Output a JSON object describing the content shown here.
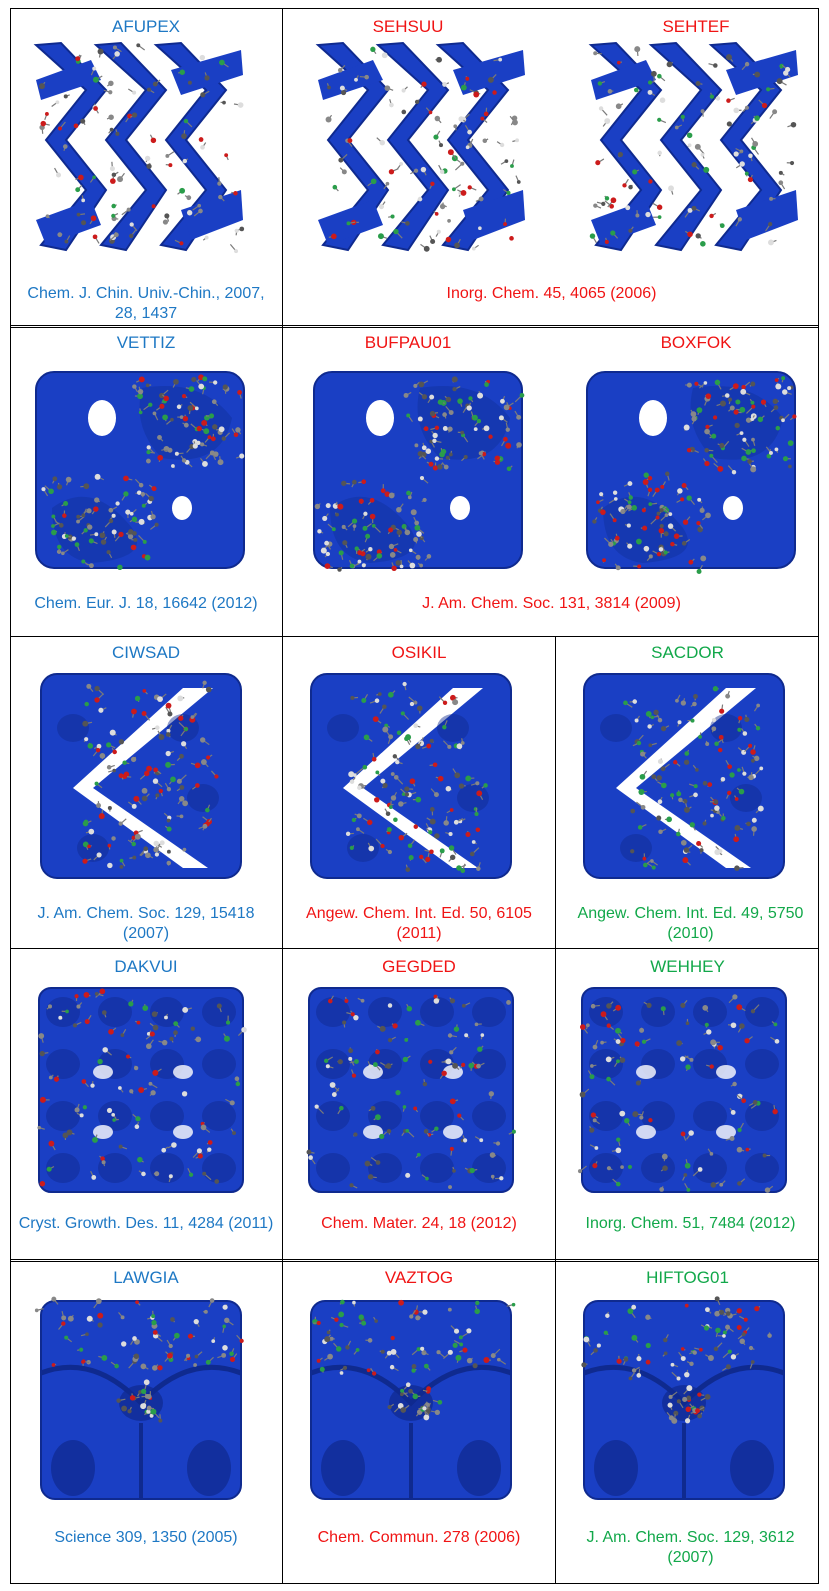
{
  "colors": {
    "blue": "#1e78c4",
    "red": "#f01414",
    "green": "#12a84a",
    "framework_surface": "#1a3fc4",
    "framework_dark": "#0f2a8f"
  },
  "rows": [
    {
      "cells": [
        {
          "name": "AFUPEX",
          "color": "blue",
          "image_style": "zigzag"
        },
        {
          "name": "SEHSUU",
          "color": "red",
          "image_style": "zigzag"
        },
        {
          "name": "SEHTEF",
          "color": "red",
          "image_style": "zigzag"
        }
      ],
      "refs": [
        {
          "text": "Chem. J. Chin. Univ.-Chin., 2007, 28, 1437",
          "color": "blue"
        },
        {
          "text": "Inorg. Chem. 45, 4065 (2006)",
          "color": "red"
        }
      ]
    },
    {
      "cells": [
        {
          "name": "VETTIZ",
          "color": "blue",
          "image_style": "pore"
        },
        {
          "name": "BUFPAU01",
          "color": "red",
          "image_style": "pore"
        },
        {
          "name": "BOXFOK",
          "color": "red",
          "image_style": "pore"
        }
      ],
      "refs": [
        {
          "text": "Chem. Eur. J. 18, 16642 (2012)",
          "color": "blue"
        },
        {
          "text": "J. Am. Chem. Soc. 131, 3814 (2009)",
          "color": "red"
        }
      ]
    },
    {
      "cells": [
        {
          "name": "CIWSAD",
          "color": "blue",
          "image_style": "channel"
        },
        {
          "name": "OSIKIL",
          "color": "red",
          "image_style": "channel"
        },
        {
          "name": "SACDOR",
          "color": "green",
          "image_style": "channel"
        }
      ],
      "refs": [
        {
          "text": "J. Am. Chem. Soc. 129, 15418 (2007)",
          "color": "blue"
        },
        {
          "text": "Angew. Chem. Int. Ed. 50, 6105 (2011)",
          "color": "red"
        },
        {
          "text": "Angew. Chem. Int. Ed. 49, 5750 (2010)",
          "color": "green"
        }
      ]
    },
    {
      "cells": [
        {
          "name": "DAKVUI",
          "color": "blue",
          "image_style": "cage"
        },
        {
          "name": "GEGDED",
          "color": "red",
          "image_style": "cage"
        },
        {
          "name": "WEHHEY",
          "color": "green",
          "image_style": "cage"
        }
      ],
      "refs": [
        {
          "text": "Cryst. Growth. Des. 11, 4284 (2011)",
          "color": "blue"
        },
        {
          "text": "Chem. Mater. 24, 18 (2012)",
          "color": "red"
        },
        {
          "text": "Inorg. Chem. 51, 7484 (2012)",
          "color": "green"
        }
      ]
    },
    {
      "cells": [
        {
          "name": "LAWGIA",
          "color": "blue",
          "image_style": "bowl"
        },
        {
          "name": "VAZTOG",
          "color": "red",
          "image_style": "bowl"
        },
        {
          "name": "HIFTOG01",
          "color": "green",
          "image_style": "bowl"
        }
      ],
      "refs": [
        {
          "text": "Science 309, 1350 (2005)",
          "color": "blue"
        },
        {
          "text": "Chem. Commun. 278 (2006)",
          "color": "red"
        },
        {
          "text": "J. Am. Chem. Soc. 129, 3612 (2007)",
          "color": "green"
        }
      ]
    }
  ]
}
